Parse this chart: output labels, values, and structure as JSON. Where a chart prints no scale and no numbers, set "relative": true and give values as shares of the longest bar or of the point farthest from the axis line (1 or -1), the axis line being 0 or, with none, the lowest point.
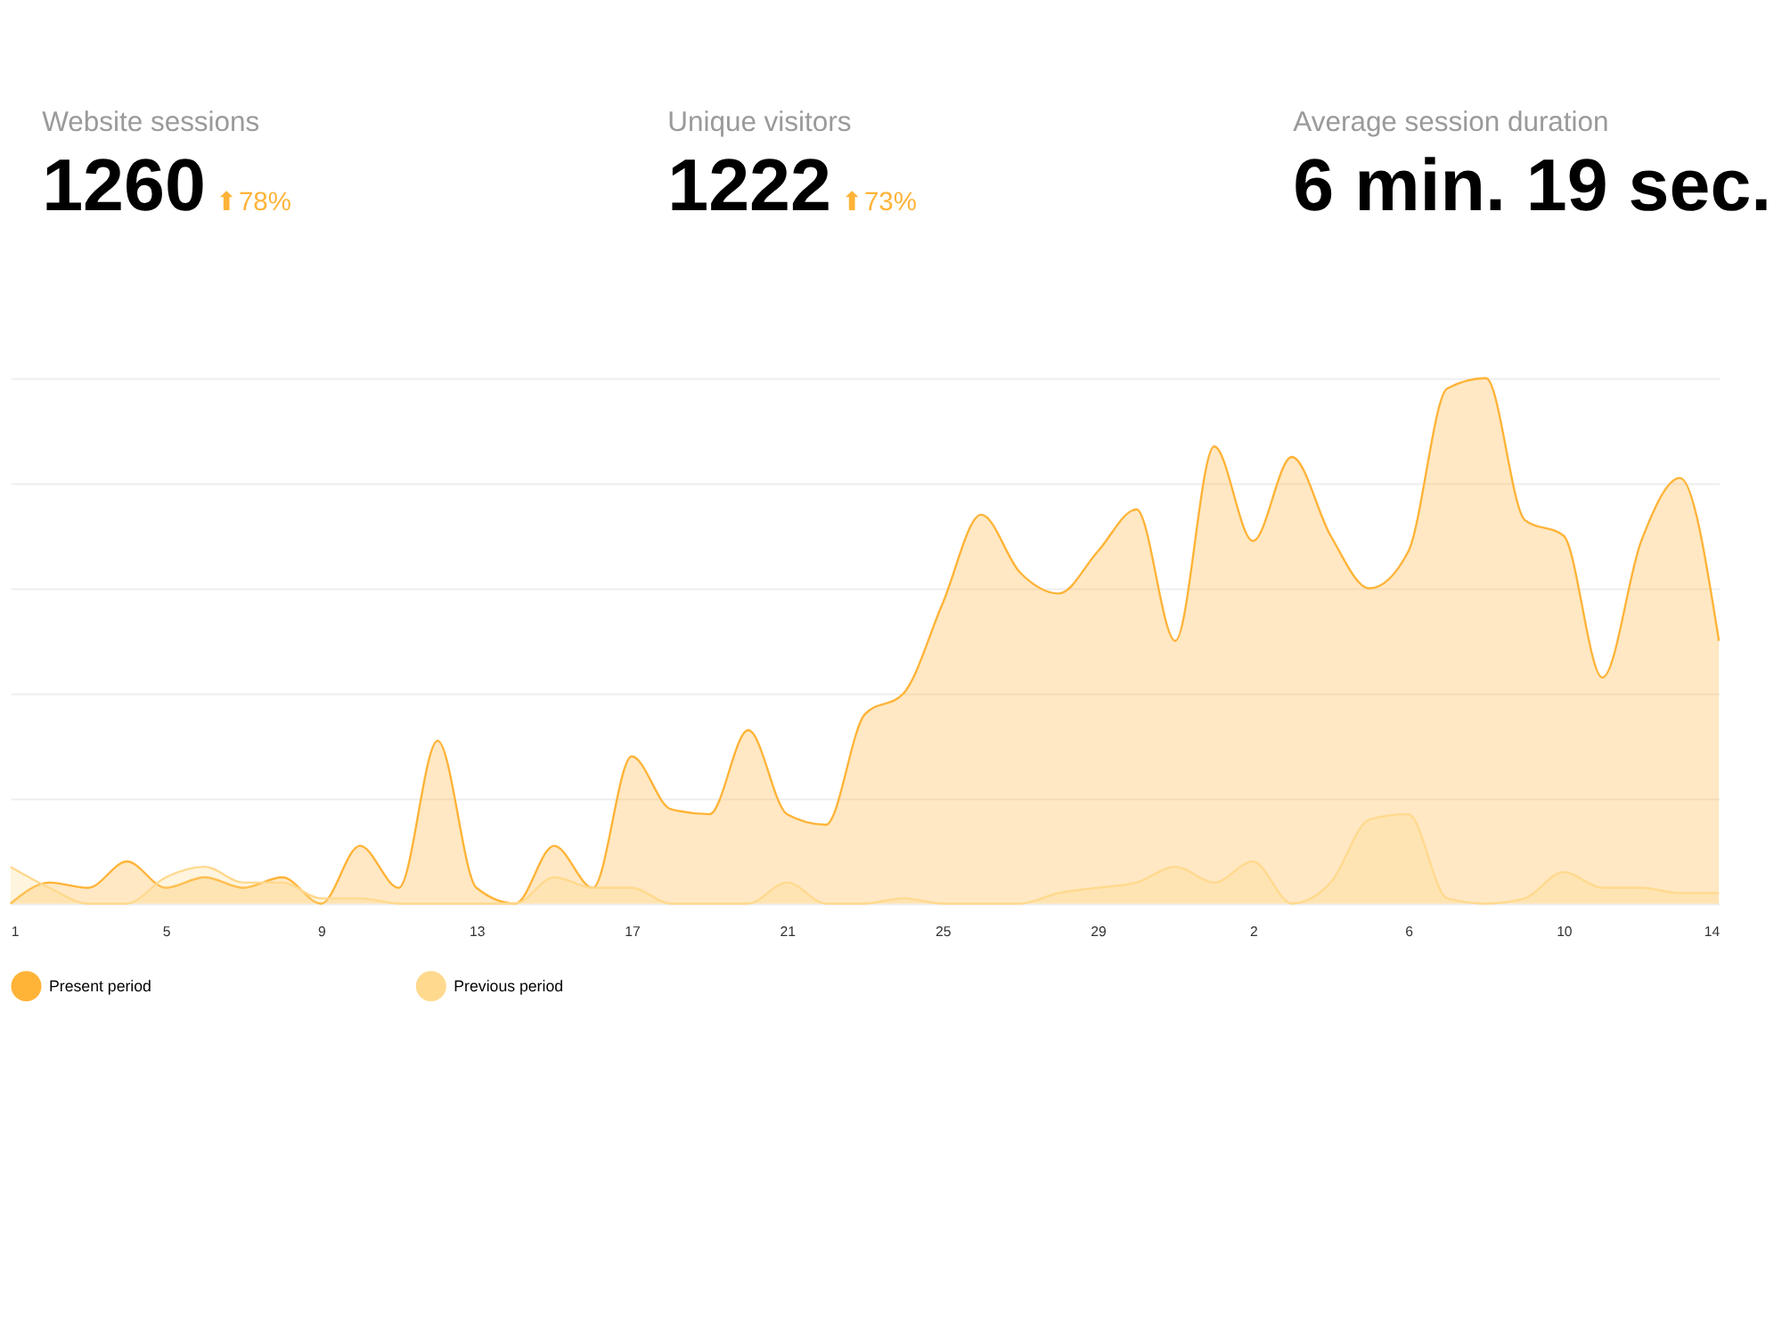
{
  "chart_data": [
    {
      "type": "other",
      "annotations": [
        "Website sessions",
        "1260",
        "⬆78%",
        "Unique visitors",
        "1222",
        "⬆73%",
        "Average session duration",
        "6 min. 19 sec.",
        null
      ]
    },
    {
      "type": "area",
      "relative": true,
      "grid": "y",
      "legend": "bottom",
      "categories": [
        "1",
        null,
        null,
        null,
        "5",
        null,
        null,
        null,
        "9",
        null,
        null,
        null,
        "13",
        null,
        null,
        null,
        "17",
        null,
        null,
        null,
        "21",
        null,
        null,
        null,
        "25",
        null,
        null,
        null,
        "29",
        null,
        null,
        null,
        "2",
        null,
        null,
        null,
        "6",
        null,
        null,
        null,
        "10",
        null,
        null,
        null,
        "14"
      ],
      "series": [
        {
          "name": "Present period",
          "color": "#ffb337",
          "values": [
            0,
            0.04,
            0.03,
            0.08,
            0.03,
            0.05,
            0.03,
            0.05,
            0,
            0.11,
            0.03,
            0.31,
            0.03,
            0,
            0.11,
            0.03,
            0.28,
            0.18,
            0.17,
            0.33,
            0.17,
            0.15,
            0.36,
            0.4,
            0.57,
            0.74,
            0.63,
            0.59,
            0.67,
            0.75,
            0.5,
            0.87,
            0.69,
            0.85,
            0.7,
            0.6,
            0.67,
            0.98,
            1.0,
            0.73,
            0.7,
            0.43,
            0.69,
            0.81,
            0.5
          ]
        },
        {
          "name": "Previous period",
          "color": "#ffd98e",
          "values": [
            0.07,
            0.03,
            0,
            0,
            0.05,
            0.07,
            0.04,
            0.04,
            0.01,
            0.01,
            0,
            0,
            0,
            0,
            0.05,
            0.03,
            0.03,
            0,
            0,
            0,
            0.04,
            0,
            0,
            0.01,
            0,
            0,
            0,
            0.02,
            0.03,
            0.04,
            0.07,
            0.04,
            0.08,
            0,
            0.04,
            0.16,
            0.17,
            0.01,
            0,
            0.01,
            0.06,
            0.03,
            0.03,
            0.02,
            0.02
          ]
        }
      ]
    }
  ]
}
